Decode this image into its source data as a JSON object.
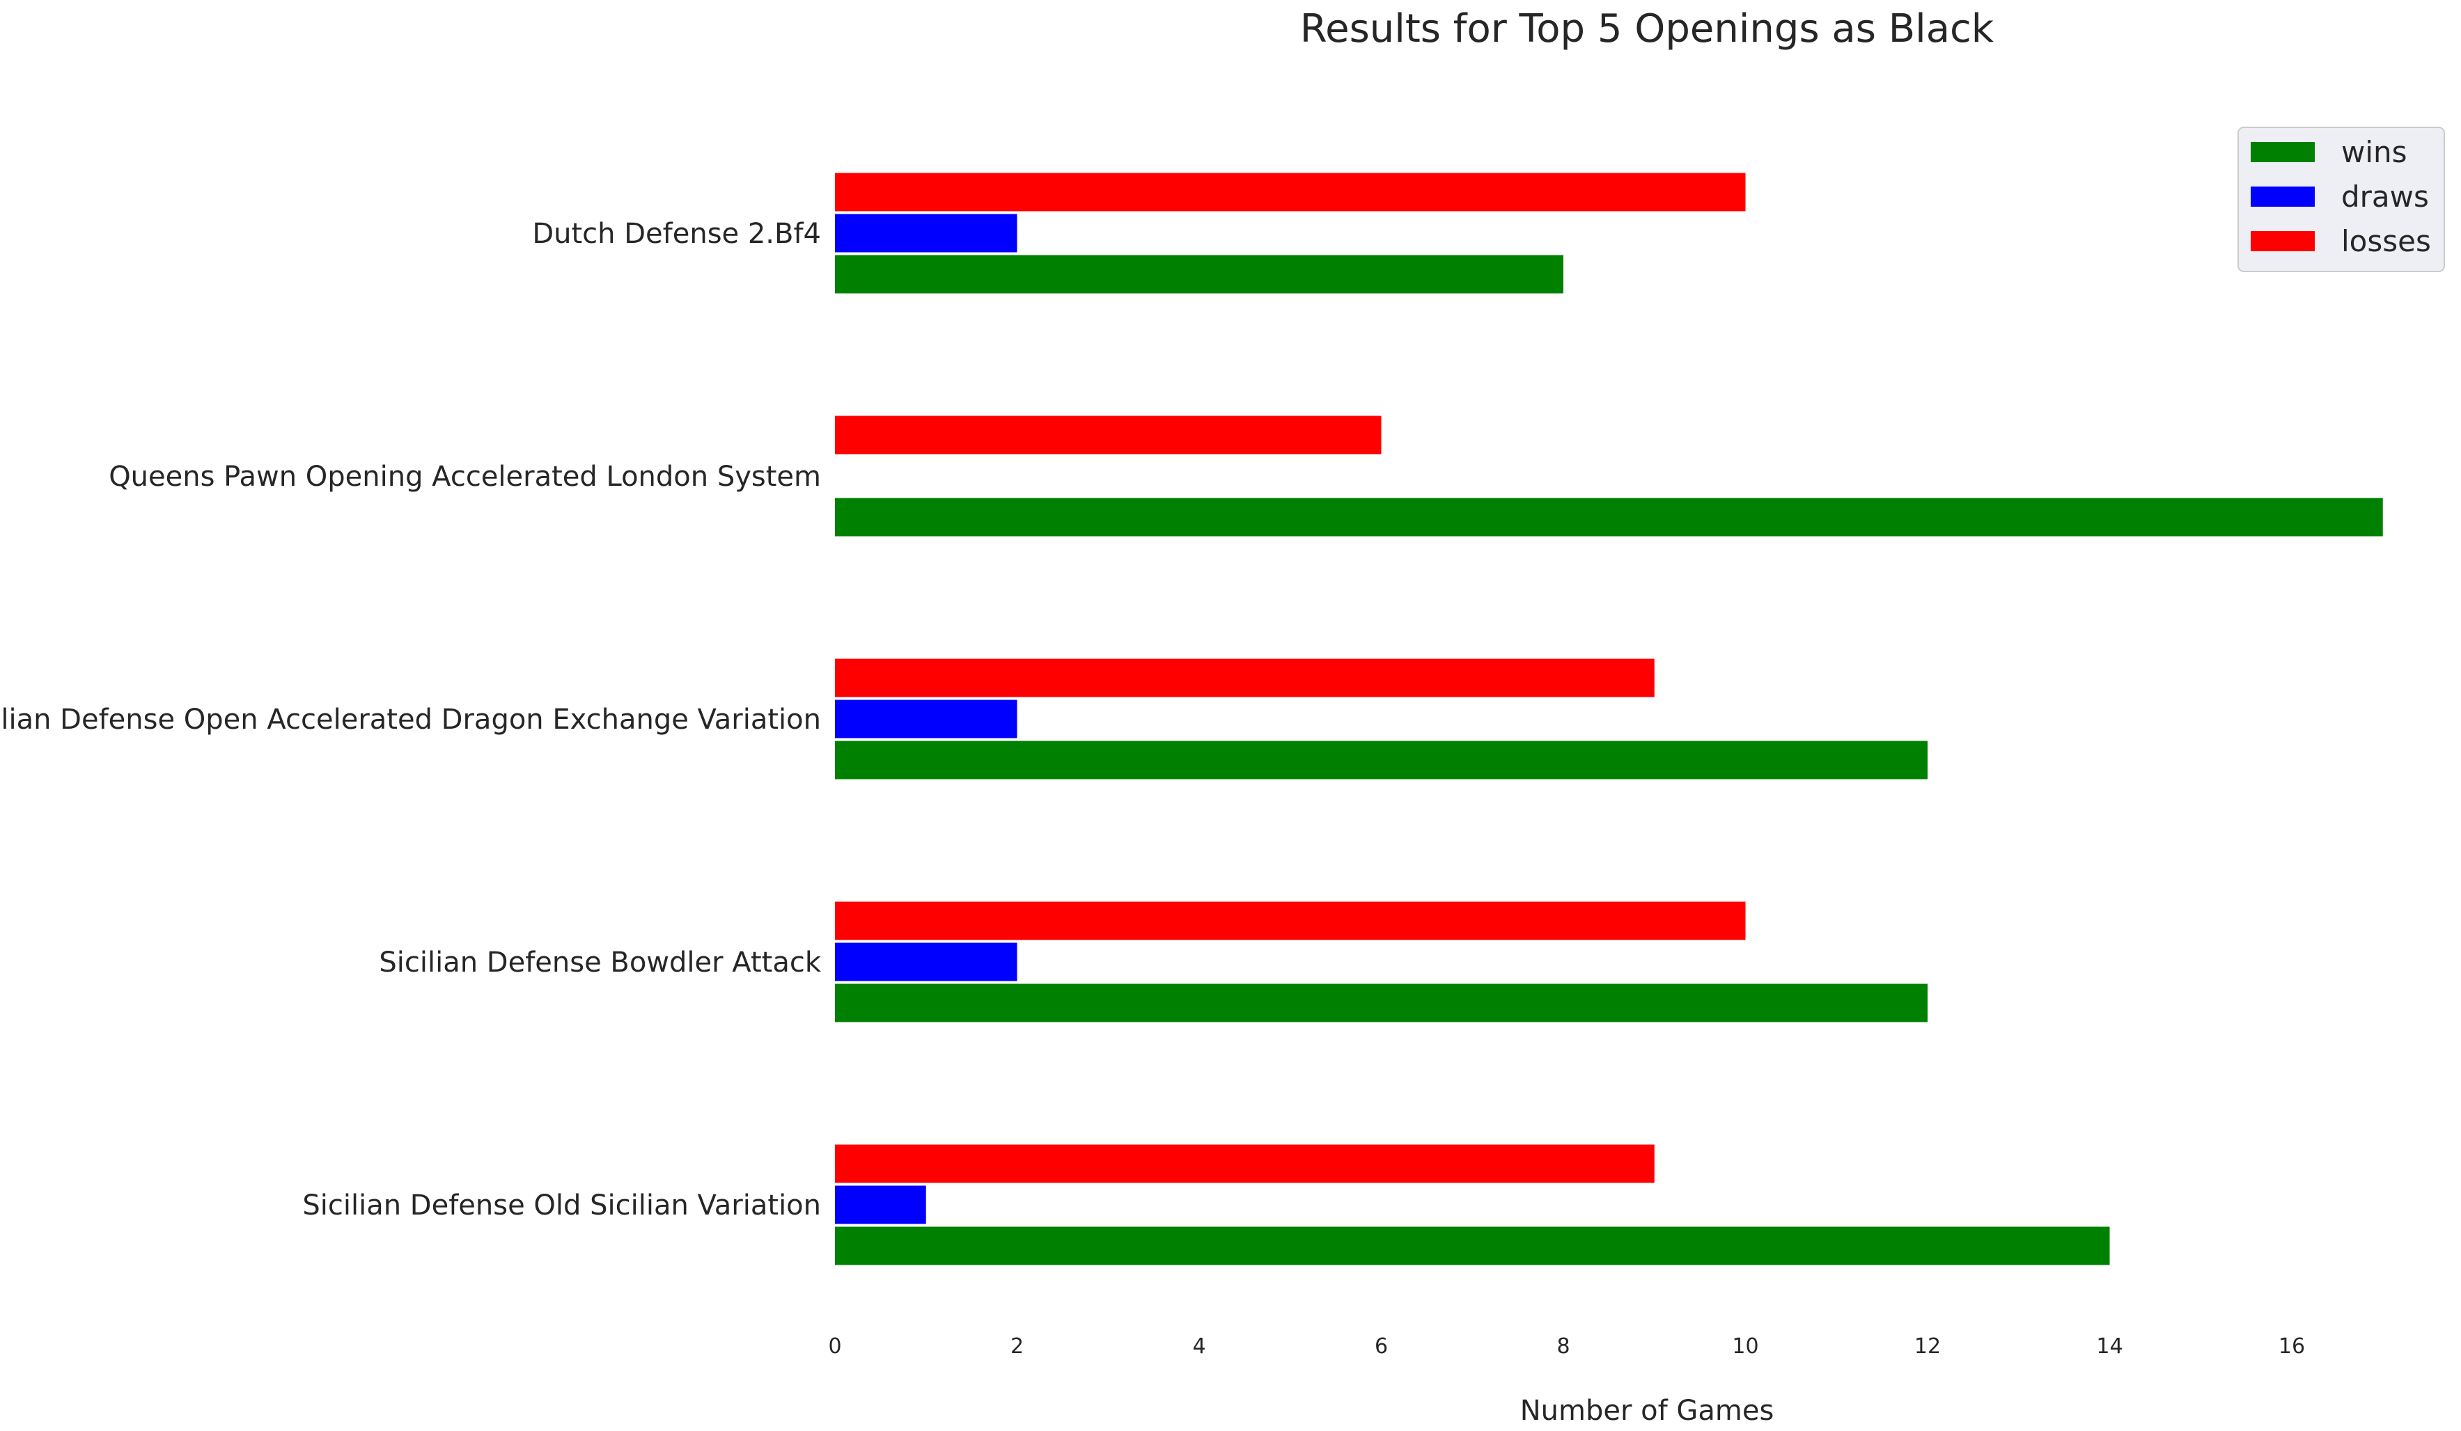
{
  "chart_data": {
    "type": "bar",
    "orientation": "horizontal",
    "title": "Results for Top 5 Openings as Black",
    "xlabel": "Number of Games",
    "ylabel": "",
    "xlim": [
      0,
      17.8
    ],
    "xticks": [
      0,
      2,
      4,
      6,
      8,
      10,
      12,
      14,
      16
    ],
    "grid": false,
    "legend_position": "top-right",
    "categories": [
      "Dutch Defense 2.Bf4",
      "Queens Pawn Opening Accelerated London System",
      "Sicilian Defense Open Accelerated Dragon Exchange Variation",
      "Sicilian Defense Bowdler Attack",
      "Sicilian Defense Old Sicilian Variation"
    ],
    "series": [
      {
        "name": "wins",
        "color": "#008000",
        "values": [
          8,
          17,
          12,
          12,
          14
        ]
      },
      {
        "name": "draws",
        "color": "#0000ff",
        "values": [
          2,
          0,
          2,
          2,
          1
        ]
      },
      {
        "name": "losses",
        "color": "#ff0000",
        "values": [
          10,
          6,
          9,
          10,
          9
        ]
      }
    ]
  }
}
